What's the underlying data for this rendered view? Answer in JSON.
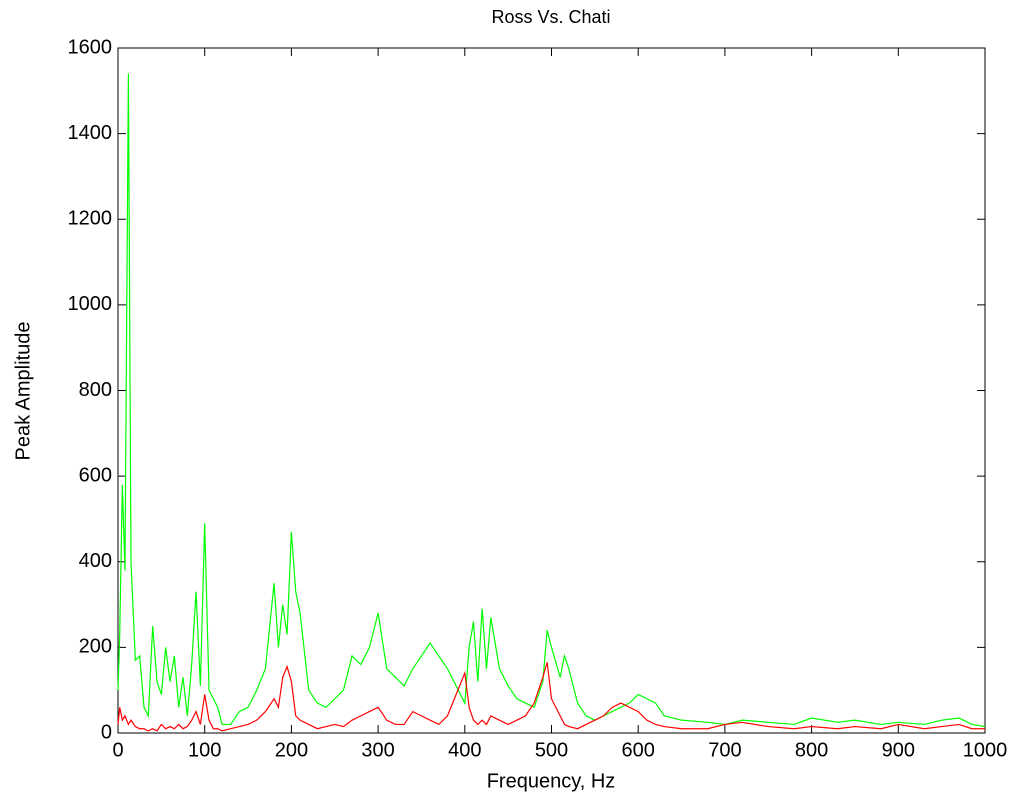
{
  "chart_data": {
    "type": "line",
    "title": "Ross Vs. Chati",
    "x_label": "Frequency, Hz",
    "y_label": "Peak Amplitude",
    "x": [
      0,
      2,
      5,
      8,
      12,
      15,
      20,
      25,
      30,
      35,
      40,
      45,
      50,
      55,
      60,
      65,
      70,
      75,
      80,
      85,
      90,
      95,
      100,
      105,
      110,
      115,
      120,
      130,
      140,
      150,
      160,
      170,
      180,
      185,
      190,
      195,
      200,
      205,
      210,
      220,
      230,
      240,
      250,
      260,
      270,
      280,
      290,
      300,
      310,
      320,
      330,
      340,
      350,
      360,
      370,
      380,
      390,
      400,
      405,
      410,
      415,
      420,
      425,
      430,
      440,
      450,
      460,
      470,
      480,
      490,
      495,
      500,
      510,
      515,
      520,
      530,
      540,
      550,
      560,
      570,
      580,
      590,
      600,
      610,
      620,
      630,
      650,
      680,
      700,
      720,
      750,
      780,
      800,
      830,
      850,
      880,
      900,
      930,
      950,
      970,
      985,
      1000
    ],
    "series": [
      {
        "color": "#00ff00",
        "values": [
          100,
          230,
          580,
          380,
          1540,
          400,
          170,
          180,
          60,
          40,
          250,
          120,
          90,
          200,
          120,
          180,
          60,
          130,
          40,
          160,
          330,
          110,
          490,
          100,
          80,
          60,
          20,
          20,
          50,
          60,
          100,
          150,
          350,
          200,
          300,
          230,
          470,
          330,
          280,
          100,
          70,
          60,
          80,
          100,
          180,
          160,
          200,
          280,
          150,
          130,
          110,
          150,
          180,
          210,
          180,
          150,
          110,
          70,
          200,
          260,
          120,
          290,
          150,
          270,
          150,
          110,
          80,
          70,
          60,
          120,
          240,
          200,
          130,
          180,
          150,
          70,
          40,
          30,
          40,
          50,
          60,
          70,
          90,
          80,
          70,
          40,
          30,
          25,
          20,
          30,
          25,
          20,
          35,
          25,
          30,
          20,
          25,
          20,
          30,
          35,
          20,
          15
        ]
      },
      {
        "color": "#ff0000",
        "values": [
          20,
          60,
          30,
          40,
          20,
          30,
          15,
          10,
          10,
          5,
          10,
          5,
          20,
          10,
          15,
          10,
          20,
          10,
          15,
          30,
          50,
          20,
          90,
          30,
          10,
          10,
          5,
          10,
          15,
          20,
          30,
          50,
          80,
          60,
          130,
          155,
          120,
          40,
          30,
          20,
          10,
          15,
          20,
          15,
          30,
          40,
          50,
          60,
          30,
          20,
          20,
          50,
          40,
          30,
          20,
          40,
          90,
          140,
          60,
          30,
          20,
          30,
          20,
          40,
          30,
          20,
          30,
          40,
          70,
          130,
          165,
          80,
          40,
          20,
          15,
          10,
          20,
          30,
          40,
          60,
          70,
          60,
          50,
          30,
          20,
          15,
          10,
          10,
          20,
          25,
          15,
          10,
          15,
          10,
          15,
          10,
          20,
          10,
          15,
          20,
          10,
          10
        ]
      }
    ],
    "xlim": [
      0,
      1000
    ],
    "xticks": [
      0,
      100,
      200,
      300,
      400,
      500,
      600,
      700,
      800,
      900,
      1000
    ],
    "ylim": [
      0,
      1600
    ],
    "yticks": [
      0,
      200,
      400,
      600,
      800,
      1000,
      1200,
      1400,
      1600
    ],
    "grid": false
  }
}
